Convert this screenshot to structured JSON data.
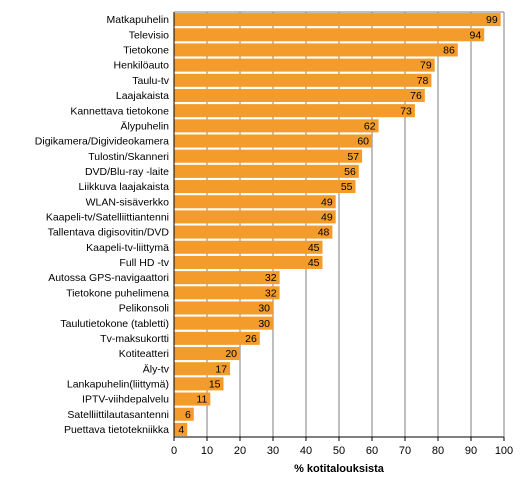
{
  "chart_data": {
    "type": "bar",
    "orientation": "horizontal",
    "categories": [
      "Matkapuhelin",
      "Televisio",
      "Tietokone",
      "Henkilöauto",
      "Taulu-tv",
      "Laajakaista",
      "Kannettava tietokone",
      "Älypuhelin",
      "Digikamera/Digivideokamera",
      "Tulostin/Skanneri",
      "DVD/Blu-ray -laite",
      "Liikkuva laajakaista",
      "WLAN-sisäverkko",
      "Kaapeli-tv/Satelliittiantenni",
      "Tallentava digisovitin/DVD",
      "Kaapeli-tv-liittymä",
      "Full HD -tv",
      "Autossa GPS-navigaattori",
      "Tietokone puhelimena",
      "Pelikonsoli",
      "Taulutietokone (tabletti)",
      "Tv-maksukortti",
      "Kotiteatteri",
      "Äly-tv",
      "Lankapuhelin(liittymä)",
      "IPTV-viihdepalvelu",
      "Satelliittilautasantenni",
      "Puettava tietotekniikka"
    ],
    "values": [
      99,
      94,
      86,
      79,
      78,
      76,
      73,
      62,
      60,
      57,
      56,
      55,
      49,
      49,
      48,
      45,
      45,
      32,
      32,
      30,
      30,
      26,
      20,
      17,
      15,
      11,
      6,
      4
    ],
    "xlabel": "% kotitalouksista",
    "xlim": [
      0,
      100
    ],
    "xticks": [
      0,
      10,
      20,
      30,
      40,
      50,
      60,
      70,
      80,
      90,
      100
    ],
    "grid": true,
    "bar_color": "#f39c2c",
    "grid_color": "#7f7f7f",
    "axis_color": "#000000"
  }
}
